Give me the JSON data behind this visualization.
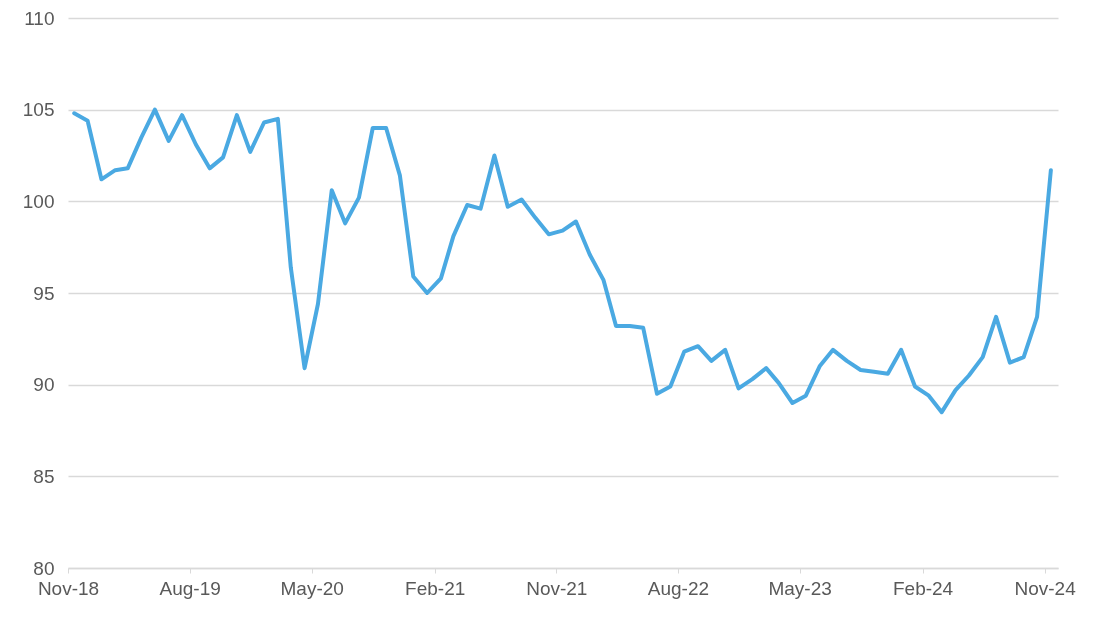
{
  "chart_data": {
    "type": "line",
    "x": [
      "2018-11-15",
      "2018-12-15",
      "2019-01-15",
      "2019-02-15",
      "2019-03-15",
      "2019-04-15",
      "2019-05-15",
      "2019-06-15",
      "2019-07-15",
      "2019-08-15",
      "2019-09-15",
      "2019-10-15",
      "2019-11-15",
      "2019-12-15",
      "2020-01-15",
      "2020-02-15",
      "2020-03-15",
      "2020-04-15",
      "2020-05-15",
      "2020-06-15",
      "2020-07-15",
      "2020-08-15",
      "2020-09-15",
      "2020-10-15",
      "2020-11-15",
      "2020-12-15",
      "2021-01-15",
      "2021-02-15",
      "2021-03-15",
      "2021-04-15",
      "2021-05-15",
      "2021-06-15",
      "2021-07-15",
      "2021-08-15",
      "2021-09-15",
      "2021-10-15",
      "2021-11-15",
      "2021-12-15",
      "2022-01-15",
      "2022-02-15",
      "2022-03-15",
      "2022-04-15",
      "2022-05-15",
      "2022-06-15",
      "2022-07-15",
      "2022-08-15",
      "2022-09-15",
      "2022-10-15",
      "2022-11-15",
      "2022-12-15",
      "2023-01-15",
      "2023-02-15",
      "2023-03-15",
      "2023-04-15",
      "2023-05-15",
      "2023-06-15",
      "2023-07-15",
      "2023-08-15",
      "2023-09-15",
      "2023-10-15",
      "2023-11-15",
      "2023-12-15",
      "2024-01-15",
      "2024-02-15",
      "2024-03-15",
      "2024-04-15",
      "2024-05-15",
      "2024-06-15",
      "2024-07-15",
      "2024-08-15",
      "2024-09-15",
      "2024-10-15",
      "2024-11-15"
    ],
    "series": [
      {
        "color": "#4aa9e2",
        "values": [
          104.8,
          104.4,
          101.2,
          101.7,
          101.8,
          103.5,
          105.0,
          103.3,
          104.7,
          103.1,
          101.8,
          102.4,
          104.7,
          102.7,
          104.3,
          104.5,
          96.4,
          90.9,
          94.4,
          100.6,
          98.8,
          100.2,
          104.0,
          104.0,
          101.4,
          95.9,
          95.0,
          95.8,
          98.1,
          99.8,
          99.6,
          102.5,
          99.7,
          100.1,
          99.1,
          98.2,
          98.4,
          98.9,
          97.1,
          95.7,
          93.2,
          93.2,
          93.1,
          89.5,
          89.9,
          91.8,
          92.1,
          91.3,
          91.9,
          89.8,
          90.3,
          90.9,
          90.1,
          89.0,
          89.4,
          91.0,
          91.9,
          91.3,
          90.8,
          90.7,
          90.6,
          91.9,
          89.9,
          89.4,
          88.5,
          89.7,
          90.5,
          91.5,
          93.7,
          91.2,
          91.5,
          93.7,
          101.7
        ]
      }
    ],
    "xlim": [
      "2018-11-01",
      "2024-12-01"
    ],
    "xticks": [
      {
        "value": "2018-11-01",
        "label": "Nov-18"
      },
      {
        "value": "2019-08-01",
        "label": "Aug-19"
      },
      {
        "value": "2020-05-01",
        "label": "May-20"
      },
      {
        "value": "2021-02-01",
        "label": "Feb-21"
      },
      {
        "value": "2021-11-01",
        "label": "Nov-21"
      },
      {
        "value": "2022-08-01",
        "label": "Aug-22"
      },
      {
        "value": "2023-05-01",
        "label": "May-23"
      },
      {
        "value": "2024-02-01",
        "label": "Feb-24"
      },
      {
        "value": "2024-11-01",
        "label": "Nov-24"
      }
    ],
    "ylim": [
      80,
      110
    ],
    "yticks": [
      80,
      85,
      90,
      95,
      100,
      105,
      110
    ],
    "grid": "y",
    "marker": "none",
    "line_style": "solid"
  }
}
